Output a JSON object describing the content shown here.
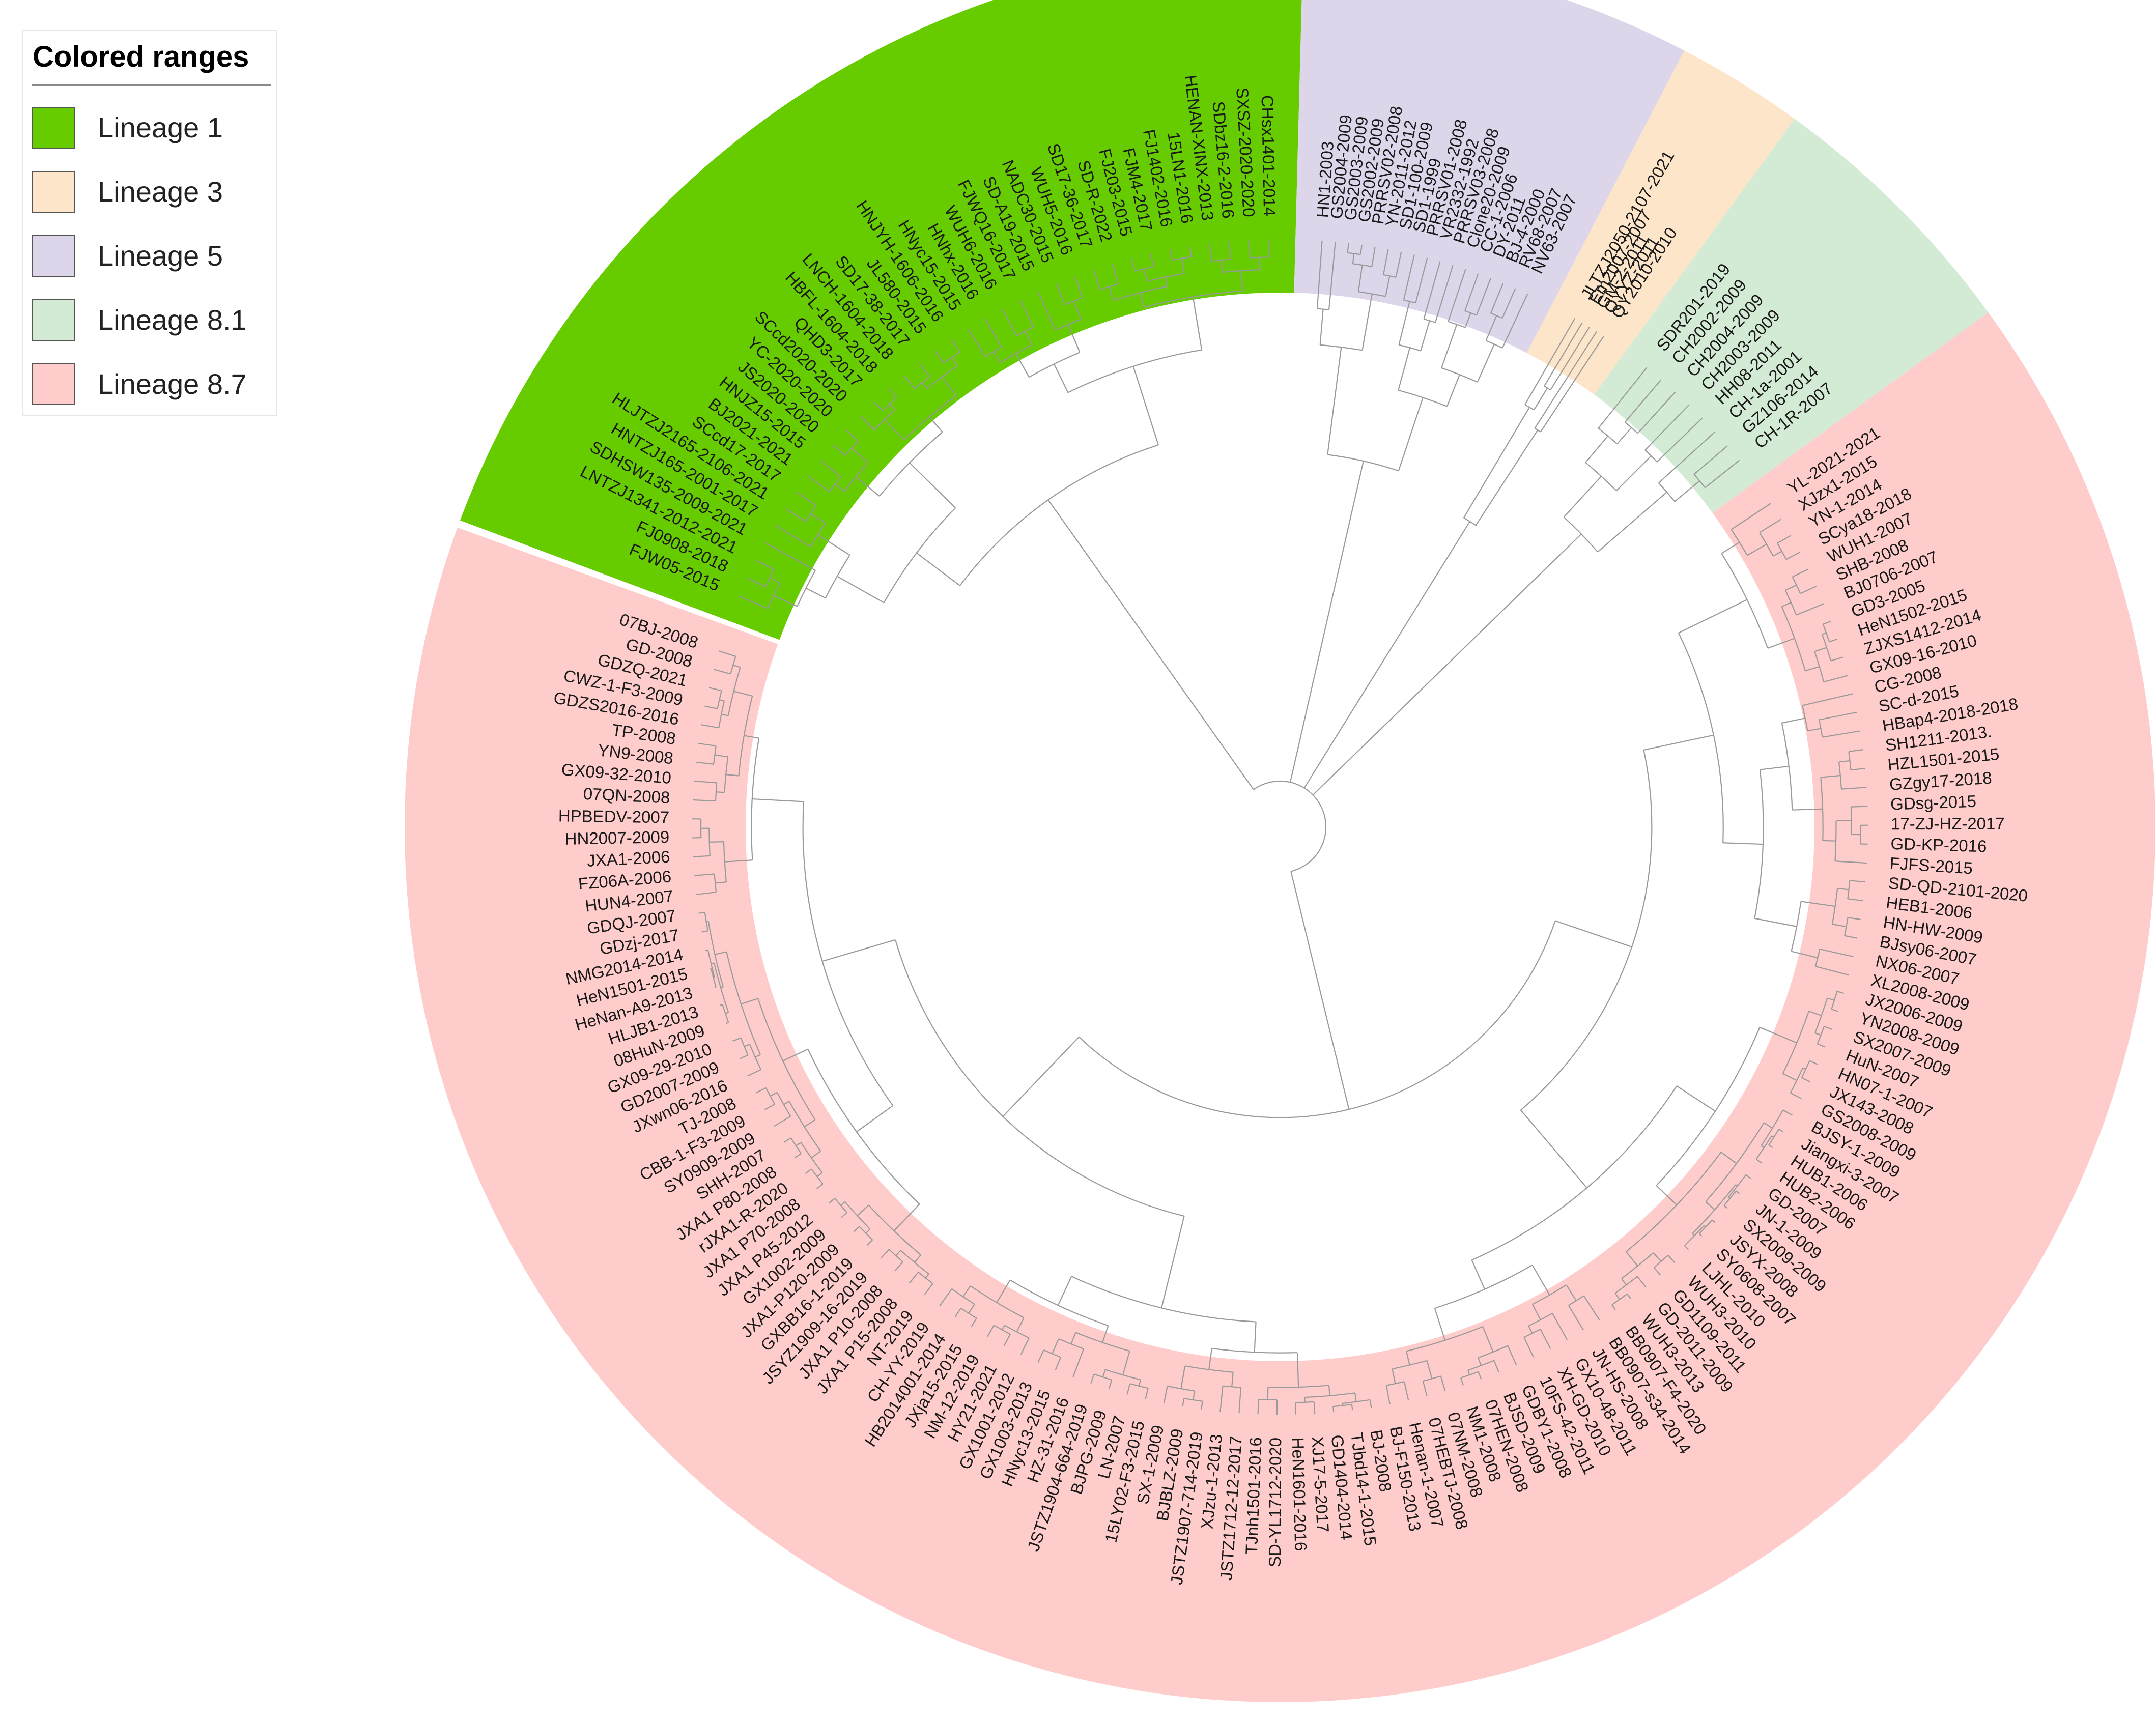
{
  "legend": {
    "title": "Colored ranges",
    "items": [
      {
        "label": "Lineage 1",
        "color": "#66cc00"
      },
      {
        "label": "Lineage 3",
        "color": "#fde5c9"
      },
      {
        "label": "Lineage 5",
        "color": "#ddd5ea"
      },
      {
        "label": "Lineage 8.1",
        "color": "#d3ebd4"
      },
      {
        "label": "Lineage 8.7",
        "color": "#ffcccc"
      }
    ]
  },
  "clades": [
    {
      "name": "Lineage 1",
      "color": "#66cc00",
      "leaves": [
        "FJW05-2015",
        "FJ0908-2018",
        "LNTZJ1341-2012-2021",
        "SDHSW135-2009-2021",
        "HNTZJ165-2001-2017",
        "HLJTZJ2165-2106-2021",
        "SCcd17-2017",
        "BJ2021-2021",
        "HNJZ15-2015",
        "JS2020-2020",
        "YC-2020-2020",
        "SCcd2020-2020",
        "QHD3-2017",
        "HBFL-1604-2018",
        "LNCH-1604-2018",
        "SD17-38-2017",
        "JL580-2015",
        "HNJYH-1606-2016",
        "HNyc15-2015",
        "HNhx-2016",
        "WUH6-2016",
        "FJWQ16-2017",
        "SD-A19-2015",
        "NADC30-2015",
        "WUH5-2016",
        "SD17-36-2017",
        "SD-R-2022",
        "FJ203-2015",
        "FJM4-2017",
        "FJ1402-2016",
        "15LN1-2016",
        "HENAN-XINX-2013",
        "SDbz16-2-2016",
        "SXSZ-2020-2020",
        "CHsx1401-2014"
      ]
    },
    {
      "name": "Lineage 5",
      "color": "#ddd5ea",
      "leaves": [
        "HN1-2003",
        "GS2004-2009",
        "GS2003-2009",
        "GS2002-2009",
        "PRRSV02-2008",
        "YN-2011-2012",
        "SD1-100-2009",
        "SD1-1999",
        "PRRSV01-2008",
        "VR2332-1992",
        "PRRSV03-2008",
        "Clone20-2009",
        "CC-1-2006",
        "DY-2011",
        "BJ-4-2000",
        "RV68-2007",
        "NV63-2007"
      ]
    },
    {
      "name": "Lineage 3",
      "color": "#fde5c9",
      "leaves": [
        "JLTZJ2050-2107-2021",
        "Em2007-2007",
        "GM-2-2011",
        "QYYZ-2011",
        "QY2010-2010"
      ]
    },
    {
      "name": "Lineage 8.1",
      "color": "#d3ebd4",
      "leaves": [
        "SDR201-2019",
        "CH2002-2009",
        "CH2004-2009",
        "CH2003-2009",
        "HH08-2011",
        "CH-1a-2001",
        "GZ106-2014",
        "CH-1R-2007"
      ]
    },
    {
      "name": "Lineage 8.7",
      "color": "#ffcccc",
      "leaves": [
        "YL-2021-2021",
        "XJzx1-2015",
        "YN-1-2014",
        "SCya18-2018",
        "WUH1-2007",
        "SHB-2008",
        "BJ0706-2007",
        "GD3-2005",
        "HeN1502-2015",
        "ZJXS1412-2014",
        "GX09-16-2010",
        "CG-2008",
        "SC-d-2015",
        "HBap4-2018-2018",
        "SH1211-2013.",
        "HZL1501-2015",
        "GZgy17-2018",
        "GDsg-2015",
        "17-ZJ-HZ-2017",
        "GD-KP-2016",
        "FJFS-2015",
        "SD-QD-2101-2020",
        "HEB1-2006",
        "HN-HW-2009",
        "BJsy06-2007",
        "NX06-2007",
        "XL2008-2009",
        "JX2006-2009",
        "YN2008-2009",
        "SX2007-2009",
        "HuN-2007",
        "HN07-1-2007",
        "JX143-2008",
        "GS2008-2009",
        "BJSY-1-2009",
        "Jiangxi-3-2007",
        "HUB1-2006",
        "HUB2-2006",
        "GD-2007",
        "JN-1-2009",
        "SX2009-2009",
        "JSYX-2008",
        "SY0608-2007",
        "LJHL-2010",
        "WUH3-2010",
        "GD1109-2011",
        "GD-2011-2009",
        "WUH3-2013",
        "BB0907-F4-2020",
        "BB0907-s34-2014",
        "JN-HS-2008",
        "GX10-48-2011",
        "XH-GD-2010",
        "10FS-42-2011",
        "GDBY1-2008",
        "BJSD-2009",
        "07HEN-2008",
        "NM1-2008",
        "07NM-2008",
        "07HEBTJ-2008",
        "Henan-1-2007",
        "BJ-F150-2013",
        "BJ-2008",
        "TJbd14-1-2015",
        "GD1404-2014",
        "XJ17-5-2017",
        "HeN1601-2016",
        "SD-YL1712-2020",
        "TJnh1501-2016",
        "JSTZ1712-12-2017",
        "XJzu-1-2013",
        "JSTZ1907-714-2019",
        "BJBLZ-2009",
        "SX-1-2009",
        "15LY02-F3-2015",
        "LN-2007",
        "BJPG-2009",
        "JSTZ1904-664-2019",
        "HZ-31-2016",
        "HNyc13-2015",
        "GX1003-2013",
        "GX1001-2012",
        "HY21-2021",
        "NM-12-2019",
        "JXja15-2015",
        "HB2014001-2014",
        "CH-YY-2019",
        "NT-2019",
        "JXA1 P15-2008",
        "JXA1 P10-2008",
        "JSYZ1909-16-2019",
        "GXBB16-1-2019",
        "JXA1-P120-2009",
        "GX1002-2009",
        "JXA1 P45-2012",
        "JXA1 P70-2008",
        "rJXA1-R-2020",
        "JXA1 P80-2008",
        "SHH-2007",
        "SY0909-2009",
        "CBB-1-F3-2009",
        "TJ-2008",
        "JXwn06-2016",
        "GD2007-2009",
        "GX09-29-2010",
        "08HuN-2009",
        "HLJB1-2013",
        "HeNan-A9-2013",
        "HeN1501-2015",
        "NMG2014-2014",
        "GDzj-2017",
        "GDQJ-2007",
        "HUN4-2007",
        "FZ06A-2006",
        "JXA1-2006",
        "HN2007-2009",
        "HPBEDV-2007",
        "07QN-2008",
        "GX09-32-2010",
        "YN9-2008",
        "TP-2008",
        "GDZS2016-2016",
        "CWZ-1-F3-2009",
        "GDZQ-2021",
        "GD-2008",
        "07BJ-2008"
      ]
    }
  ]
}
